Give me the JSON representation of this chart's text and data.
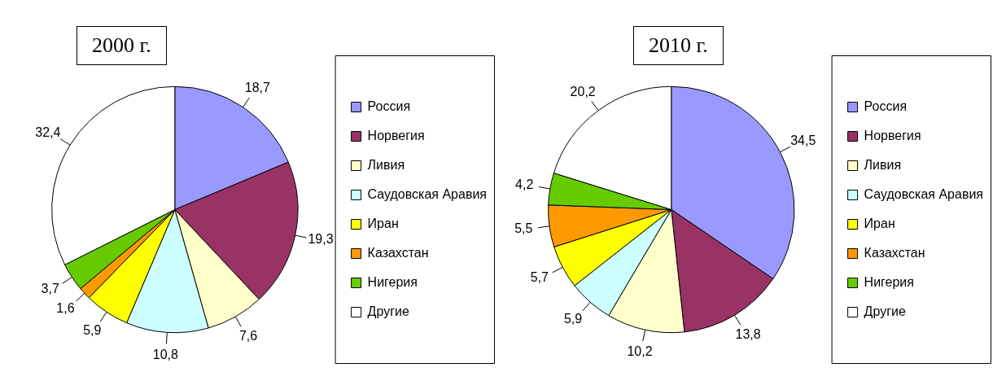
{
  "chart_data": [
    {
      "type": "pie",
      "title": "2000 г.",
      "categories": [
        "Россия",
        "Норвегия",
        "Ливия",
        "Саудовская Аравия",
        "Иран",
        "Казахстан",
        "Нигерия",
        "Другие"
      ],
      "values": [
        18.7,
        19.3,
        7.6,
        10.8,
        5.9,
        1.6,
        3.7,
        32.4
      ],
      "value_labels": [
        "18,7",
        "19,3",
        "7,6",
        "10,8",
        "5,9",
        "1,6",
        "3,7",
        "32,4"
      ],
      "colors": [
        "#9999ff",
        "#993366",
        "#ffffcc",
        "#ccffff",
        "#ffff00",
        "#ff9900",
        "#66cc00",
        "#ffffff"
      ],
      "legend": "right"
    },
    {
      "type": "pie",
      "title": "2010 г.",
      "categories": [
        "Россия",
        "Норвегия",
        "Ливия",
        "Саудовская Аравия",
        "Иран",
        "Казахстан",
        "Нигерия",
        "Другие"
      ],
      "values": [
        34.5,
        13.8,
        10.2,
        5.9,
        5.7,
        5.5,
        4.2,
        20.2
      ],
      "value_labels": [
        "34,5",
        "13,8",
        "10,2",
        "5,9",
        "5,7",
        "5,5",
        "4,2",
        "20,2"
      ],
      "colors": [
        "#9999ff",
        "#993366",
        "#ffffcc",
        "#ccffff",
        "#ffff00",
        "#ff9900",
        "#66cc00",
        "#ffffff"
      ],
      "legend": "right"
    }
  ]
}
